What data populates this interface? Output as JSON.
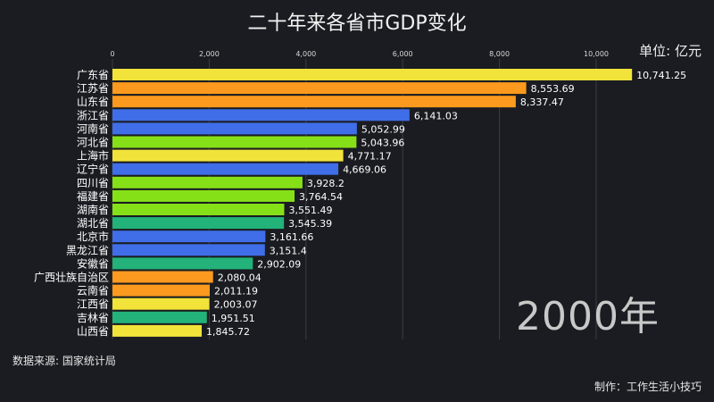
{
  "title": "二十年来各省市GDP变化",
  "unit_label": "单位: 亿元",
  "source": "数据来源: 国家统计局",
  "credit": "制作：工作生活小技巧",
  "year_label": "2000年",
  "colors": {
    "yellow": "#f2e33a",
    "orange": "#fb9a1e",
    "blue": "#3f6ee8",
    "green": "#86e018",
    "teal": "#22b27a"
  },
  "chart_data": {
    "type": "bar",
    "orientation": "horizontal",
    "title": "二十年来各省市GDP变化",
    "xlabel": "",
    "ylabel": "",
    "xlim": [
      0,
      12000
    ],
    "ticks": [
      0,
      2000,
      4000,
      6000,
      8000,
      10000
    ],
    "tick_labels": [
      "0",
      "2,000",
      "4,000",
      "6,000",
      "8,000",
      "10,000"
    ],
    "grid": true,
    "categories": [
      "广东省",
      "江苏省",
      "山东省",
      "浙江省",
      "河南省",
      "河北省",
      "上海市",
      "辽宁省",
      "四川省",
      "福建省",
      "湖南省",
      "湖北省",
      "北京市",
      "黑龙江省",
      "安徽省",
      "广西壮族自治区",
      "云南省",
      "江西省",
      "吉林省",
      "山西省"
    ],
    "values": [
      10741.25,
      8553.69,
      8337.47,
      6141.03,
      5052.99,
      5043.96,
      4771.17,
      4669.06,
      3928.2,
      3764.54,
      3551.49,
      3545.39,
      3161.66,
      3151.4,
      2902.09,
      2080.04,
      2011.19,
      2003.07,
      1951.51,
      1845.72
    ],
    "value_labels": [
      "10,741.25",
      "8,553.69",
      "8,337.47",
      "6,141.03",
      "5,052.99",
      "5,043.96",
      "4,771.17",
      "4,669.06",
      "3,928.2",
      "3,764.54",
      "3,551.49",
      "3,545.39",
      "3,161.66",
      "3,151.4",
      "2,902.09",
      "2,080.04",
      "2,011.19",
      "2,003.07",
      "1,951.51",
      "1,845.72"
    ],
    "bar_colors": [
      "#f2e33a",
      "#fb9a1e",
      "#fb9a1e",
      "#3f6ee8",
      "#3f6ee8",
      "#86e018",
      "#f2e33a",
      "#3f6ee8",
      "#86e018",
      "#86e018",
      "#86e018",
      "#22b27a",
      "#3f6ee8",
      "#3f6ee8",
      "#22b27a",
      "#fb9a1e",
      "#fb9a1e",
      "#f2e33a",
      "#22b27a",
      "#f2e33a"
    ]
  }
}
